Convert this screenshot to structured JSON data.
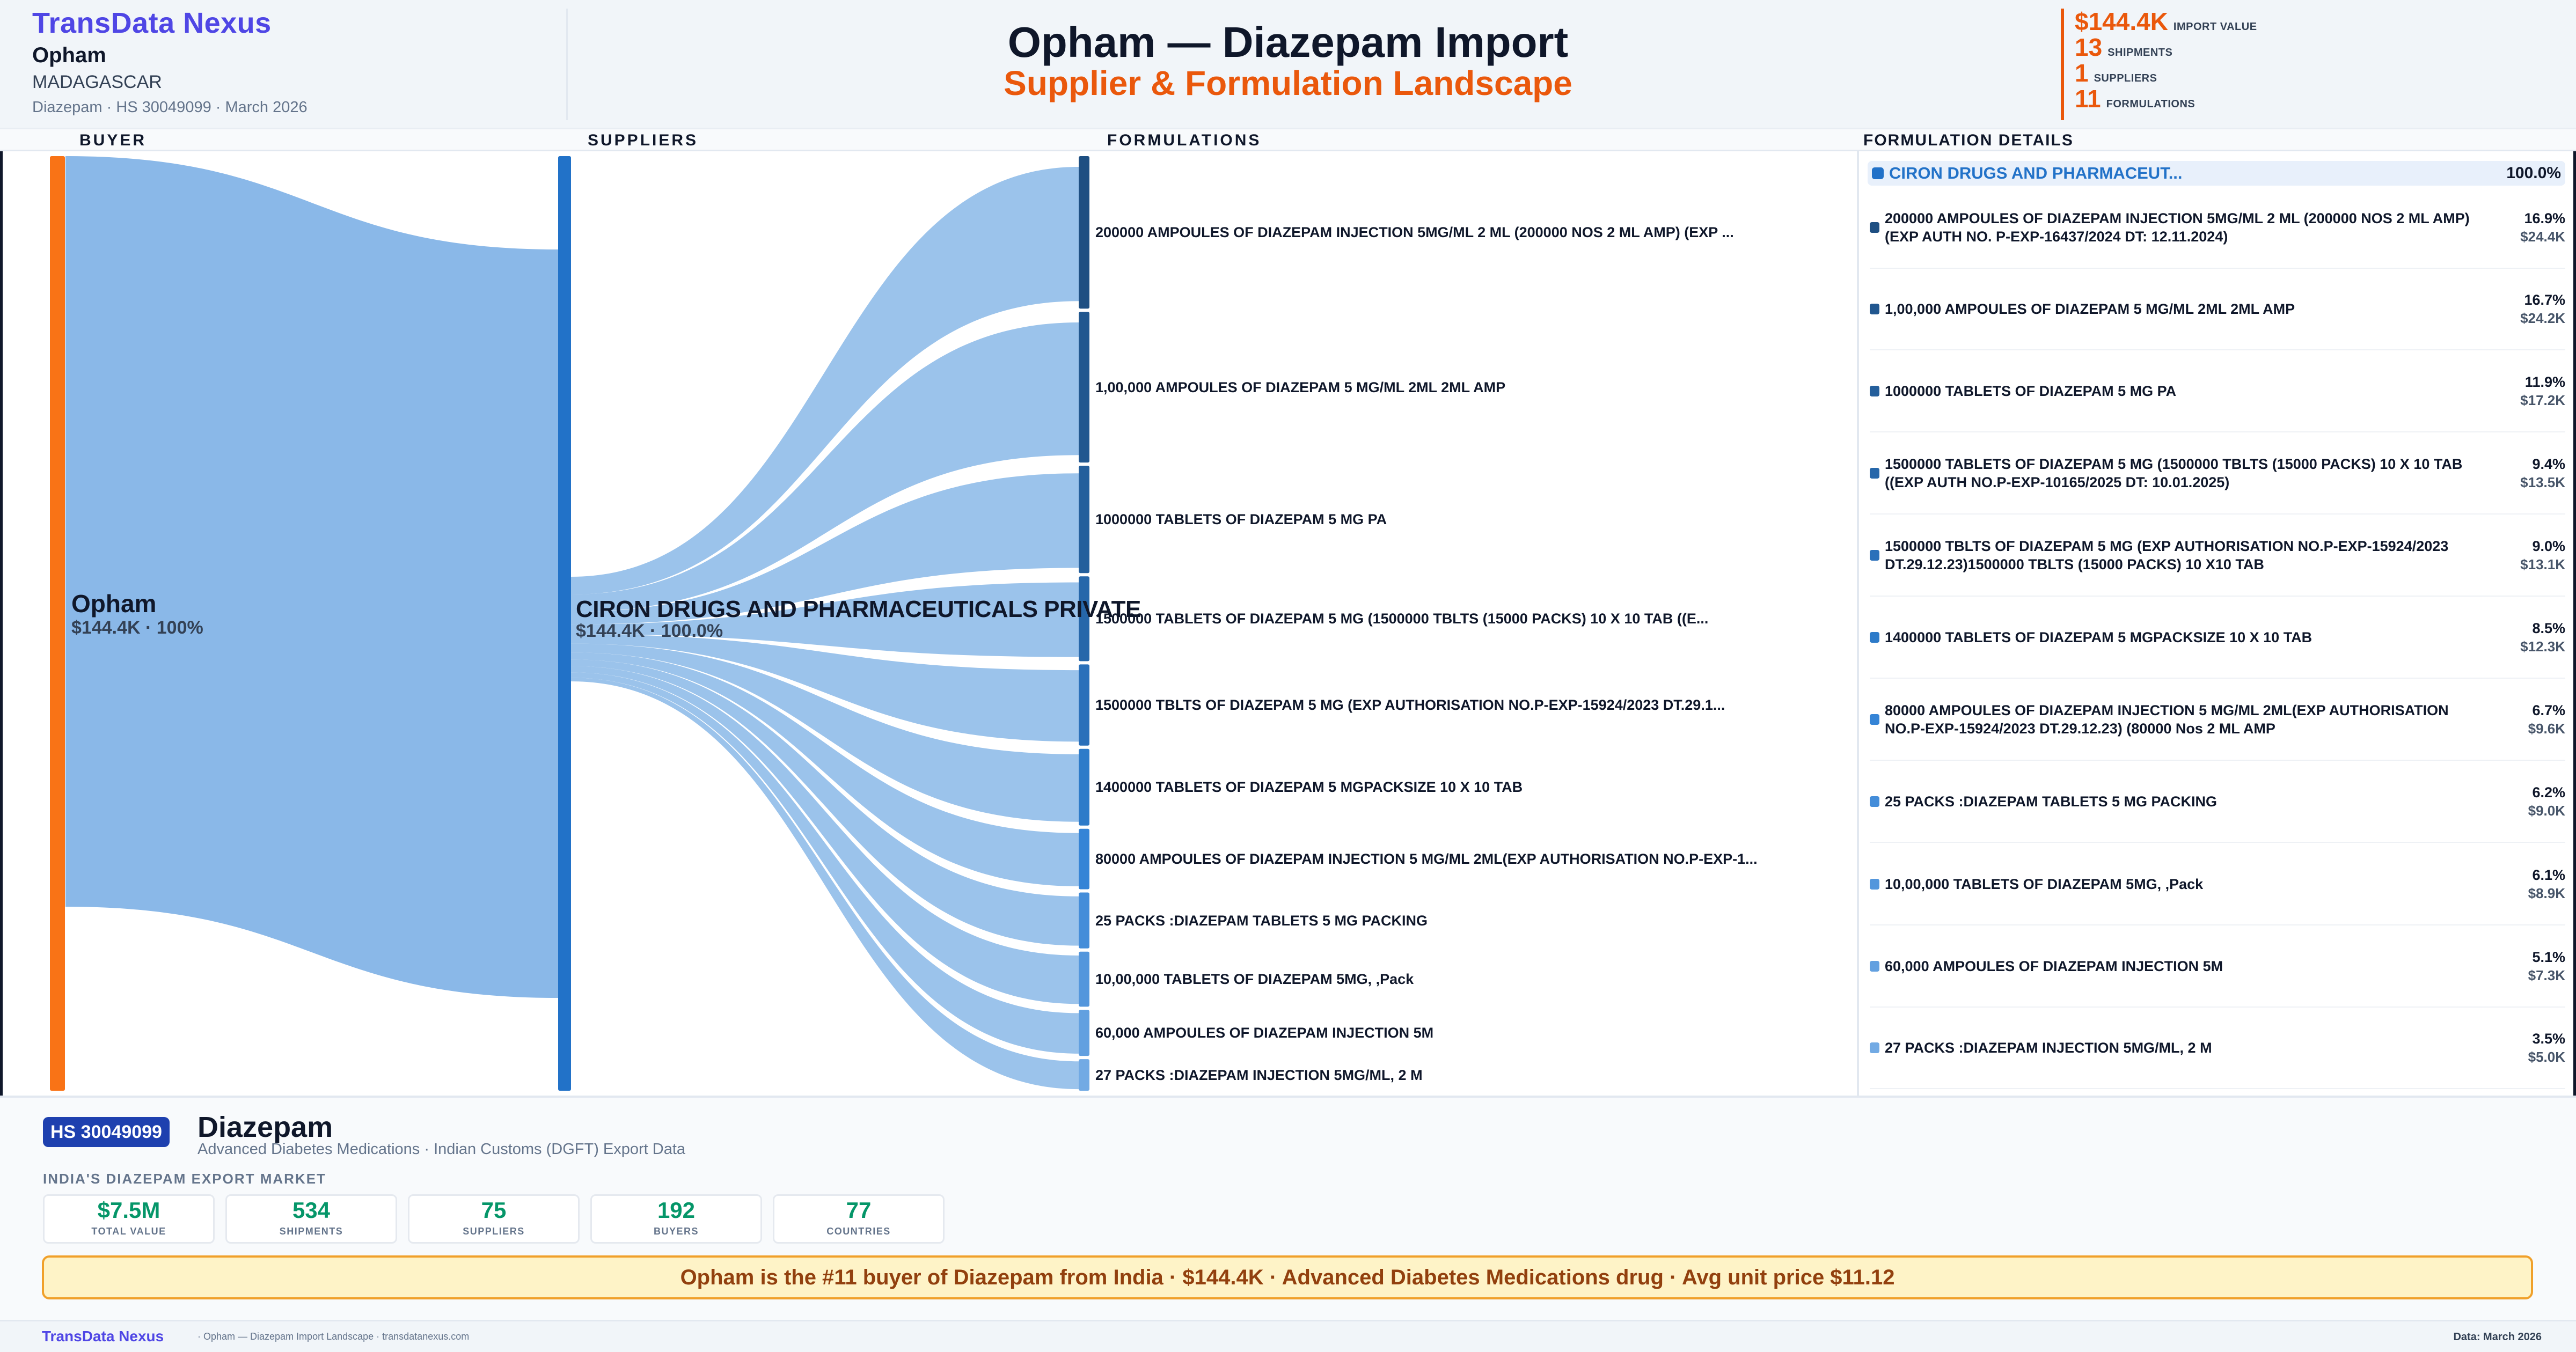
{
  "header": {
    "brand": "TransData Nexus",
    "buyer_name": "Opham",
    "buyer_country": "MADAGASCAR",
    "meta": "Diazepam · HS 30049099 · March 2026",
    "title": "Opham — Diazepam Import",
    "subtitle": "Supplier & Formulation Landscape",
    "kpis": [
      {
        "value": "$144.4K",
        "label": "IMPORT VALUE"
      },
      {
        "value": "13",
        "label": "SHIPMENTS"
      },
      {
        "value": "1",
        "label": "SUPPLIERS"
      },
      {
        "value": "11",
        "label": "FORMULATIONS"
      }
    ]
  },
  "columns": {
    "buyer": "BUYER",
    "suppliers": "SUPPLIERS",
    "formulations": "FORMULATIONS",
    "details": "FORMULATION DETAILS"
  },
  "chart_data": {
    "type": "sankey",
    "title": "Opham — Diazepam Import: Supplier & Formulation Landscape",
    "nodes": {
      "buyer": {
        "name": "Opham",
        "value_label": "$144.4K · 100%",
        "color": "#f97316"
      },
      "supplier": {
        "name": "CIRON DRUGS AND PHARMACEUTICALS PRIVATE",
        "short_name": "CIRON DRUGS AND PHARMACEUT...",
        "value_label": "$144.4K · 100.0%",
        "pct": "100.0%",
        "color": "#2272c8"
      }
    },
    "link_color": "#8ab8e8",
    "formulations": [
      {
        "label": "200000 AMPOULES OF DIAZEPAM INJECTION 5MG/ML 2 ML (200000 NOS 2 ML AMP) (EXP ...",
        "full": "200000 AMPOULES OF DIAZEPAM INJECTION 5MG/ML 2 ML (200000 NOS 2 ML AMP) (EXP AUTH NO. P-EXP-16437/2024 DT: 12.11.2024)",
        "pct": 16.9,
        "pct_label": "16.9%",
        "value": 24.4,
        "value_label": "$24.4K",
        "color": "#1e4f82"
      },
      {
        "label": "1,00,000 AMPOULES OF DIAZEPAM 5 MG/ML 2ML 2ML AMP",
        "full": "1,00,000 AMPOULES OF DIAZEPAM 5 MG/ML 2ML 2ML AMP",
        "pct": 16.7,
        "pct_label": "16.7%",
        "value": 24.2,
        "value_label": "$24.2K",
        "color": "#21578f"
      },
      {
        "label": "1000000 TABLETS OF DIAZEPAM 5 MG PA",
        "full": "1000000 TABLETS OF DIAZEPAM 5 MG PA",
        "pct": 11.9,
        "pct_label": "11.9%",
        "value": 17.2,
        "value_label": "$17.2K",
        "color": "#245f9c"
      },
      {
        "label": "1500000 TABLETS OF DIAZEPAM 5 MG (1500000 TBLTS (15000 PACKS) 10 X 10 TAB ((E...",
        "full": "1500000 TABLETS OF DIAZEPAM 5 MG (1500000 TBLTS (15000 PACKS) 10 X 10 TAB ((EXP AUTH NO.P-EXP-10165/2025 DT: 10.01.2025)",
        "pct": 9.4,
        "pct_label": "9.4%",
        "value": 13.5,
        "value_label": "$13.5K",
        "color": "#2667aa"
      },
      {
        "label": "1500000 TBLTS OF DIAZEPAM 5 MG (EXP AUTHORISATION NO.P-EXP-15924/2023 DT.29.1...",
        "full": "1500000 TBLTS OF DIAZEPAM 5 MG (EXP AUTHORISATION NO.P-EXP-15924/2023 DT.29.12.23)1500000 TBLTS (15000 PACKS) 10 X10 TAB",
        "pct": 9.0,
        "pct_label": "9.0%",
        "value": 13.1,
        "value_label": "$13.1K",
        "color": "#2a70ba"
      },
      {
        "label": "1400000 TABLETS OF DIAZEPAM 5 MGPACKSIZE 10 X 10 TAB",
        "full": "1400000 TABLETS OF DIAZEPAM 5 MGPACKSIZE 10 X 10 TAB",
        "pct": 8.5,
        "pct_label": "8.5%",
        "value": 12.3,
        "value_label": "$12.3K",
        "color": "#2d7bc9"
      },
      {
        "label": "80000 AMPOULES OF DIAZEPAM INJECTION 5 MG/ML 2ML(EXP AUTHORISATION NO.P-EXP-1...",
        "full": "80000 AMPOULES OF DIAZEPAM INJECTION 5 MG/ML 2ML(EXP AUTHORISATION NO.P-EXP-15924/2023 DT.29.12.23) (80000 Nos 2 ML AMP",
        "pct": 6.7,
        "pct_label": "6.7%",
        "value": 9.6,
        "value_label": "$9.6K",
        "color": "#3584d6"
      },
      {
        "label": "25 PACKS :DIAZEPAM TABLETS 5 MG PACKING",
        "full": "25 PACKS :DIAZEPAM TABLETS 5 MG PACKING",
        "pct": 6.2,
        "pct_label": "6.2%",
        "value": 9.0,
        "value_label": "$9.0K",
        "color": "#448dd9"
      },
      {
        "label": "10,00,000 TABLETS OF DIAZEPAM 5MG, ,Pack",
        "full": "10,00,000 TABLETS OF DIAZEPAM 5MG, ,Pack",
        "pct": 6.1,
        "pct_label": "6.1%",
        "value": 8.9,
        "value_label": "$8.9K",
        "color": "#5396dc"
      },
      {
        "label": "60,000 AMPOULES OF DIAZEPAM INJECTION 5M",
        "full": "60,000 AMPOULES OF DIAZEPAM INJECTION 5M",
        "pct": 5.1,
        "pct_label": "5.1%",
        "value": 7.3,
        "value_label": "$7.3K",
        "color": "#62a0e0"
      },
      {
        "label": "27 PACKS :DIAZEPAM INJECTION 5MG/ML, 2 M",
        "full": "27 PACKS :DIAZEPAM INJECTION 5MG/ML, 2 M",
        "pct": 3.5,
        "pct_label": "3.5%",
        "value": 5.0,
        "value_label": "$5.0K",
        "color": "#72aae4"
      }
    ]
  },
  "product": {
    "hs_badge": "HS 30049099",
    "name": "Diazepam",
    "subtitle": "Advanced Diabetes Medications · Indian Customs (DGFT) Export Data",
    "market_heading": "INDIA'S DIAZEPAM EXPORT MARKET",
    "stats": [
      {
        "value": "$7.5M",
        "label": "TOTAL VALUE"
      },
      {
        "value": "534",
        "label": "SHIPMENTS"
      },
      {
        "value": "75",
        "label": "SUPPLIERS"
      },
      {
        "value": "192",
        "label": "BUYERS"
      },
      {
        "value": "77",
        "label": "COUNTRIES"
      }
    ],
    "insight": "Opham is the #11 buyer of Diazepam from India · $144.4K · Advanced Diabetes Medications drug · Avg unit price $11.12"
  },
  "footer": {
    "brand": "TransData Nexus",
    "text": "· Opham — Diazepam Import Landscape · transdatanexus.com",
    "date": "Data: March 2026"
  }
}
